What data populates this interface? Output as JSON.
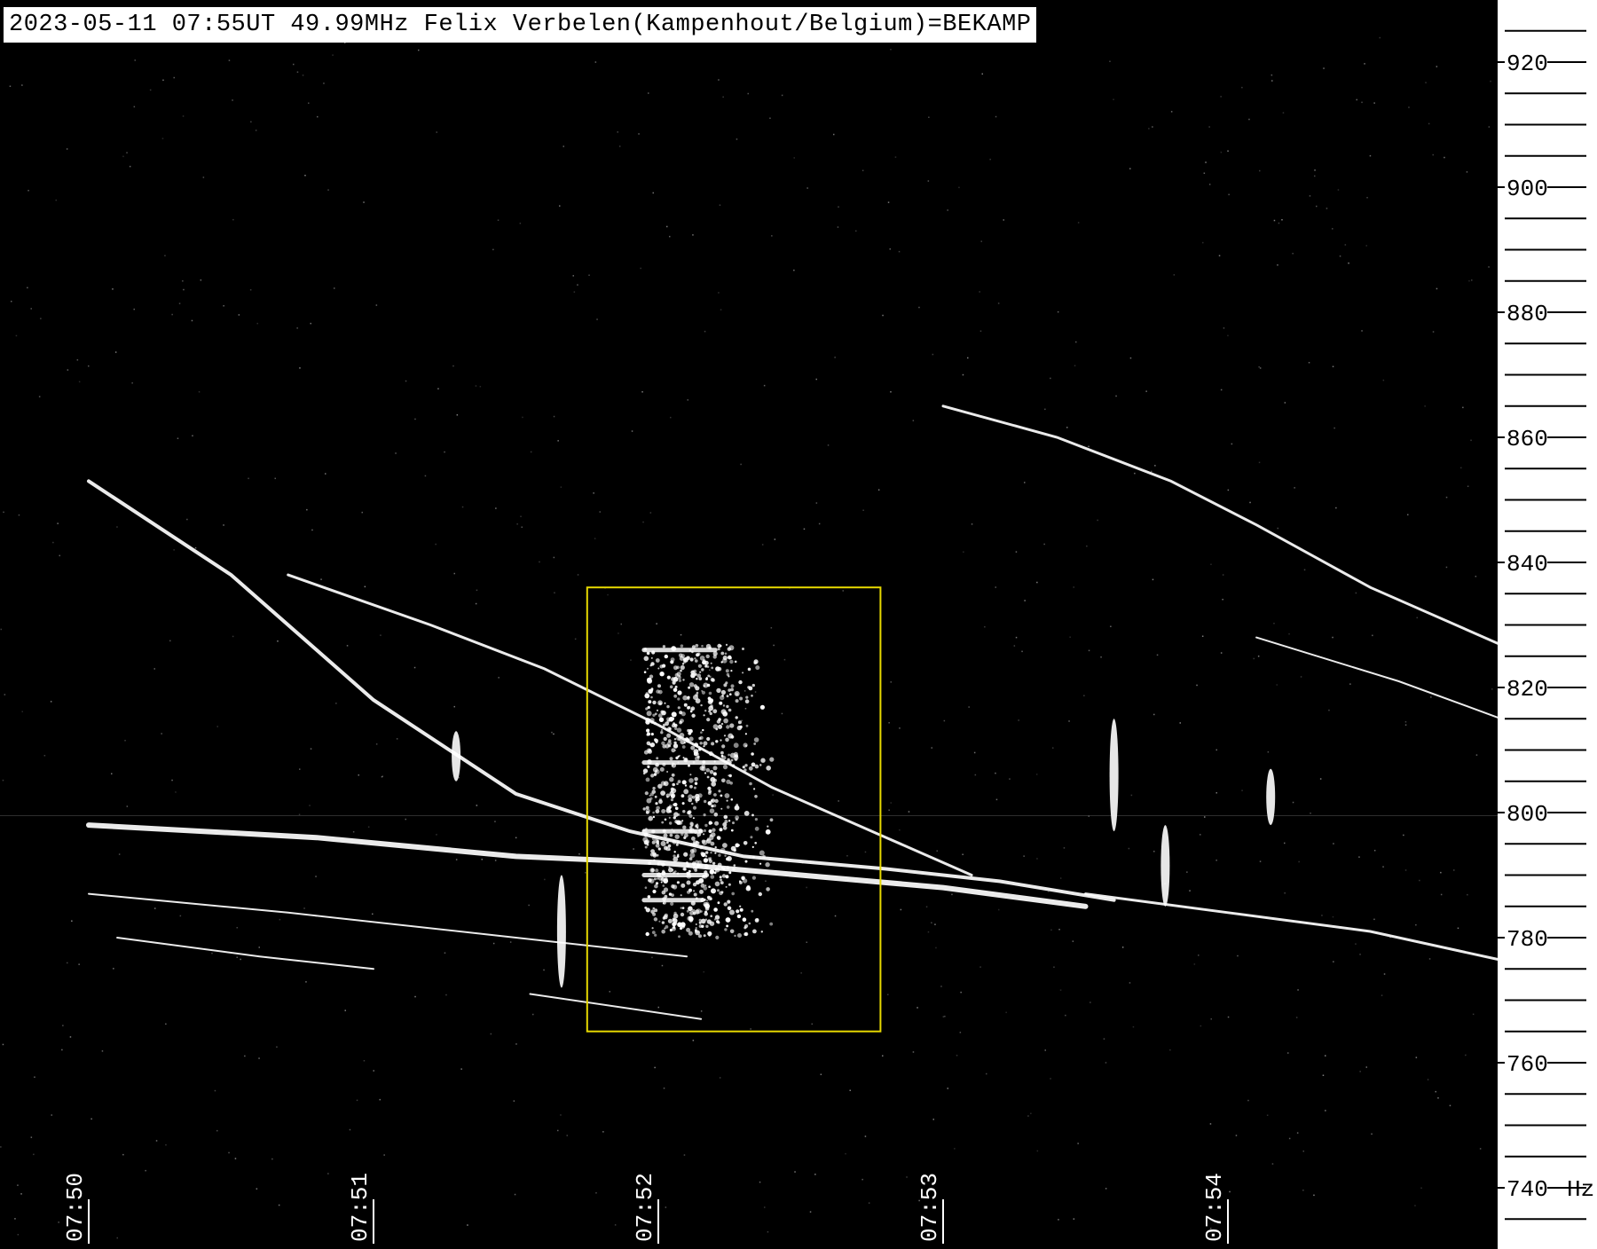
{
  "header": {
    "title": "2023-05-11 07:55UT 49.99MHz Felix Verbelen(Kampenhout/Belgium)=BEKAMP"
  },
  "chart_data": {
    "type": "spectrogram",
    "title": "2023-05-11 07:55UT 49.99MHz Felix Verbelen(Kampenhout/Belgium)=BEKAMP",
    "xlabel": "",
    "ylabel": "Hz",
    "x_ticks": [
      "07:50",
      "07:51",
      "07:52",
      "07:53",
      "07:54"
    ],
    "y_ticks": [
      920,
      900,
      880,
      860,
      840,
      820,
      800,
      780,
      760,
      740
    ],
    "y_unit": "Hz",
    "ylim": [
      730,
      930
    ],
    "xlim_minutes": [
      0,
      5.25
    ],
    "colors": {
      "background": "#000000",
      "signal": "#ffffff",
      "highlight_box": "#e6d800"
    },
    "highlight_box": {
      "x_range_minutes": [
        1.75,
        2.78
      ],
      "y_range_hz": [
        765,
        836
      ]
    },
    "traces": [
      {
        "points": [
          [
            0.0,
            853
          ],
          [
            0.5,
            838
          ],
          [
            1.0,
            818
          ],
          [
            1.5,
            803
          ],
          [
            1.9,
            797
          ],
          [
            2.3,
            793
          ],
          [
            2.8,
            791
          ],
          [
            3.2,
            789
          ],
          [
            3.6,
            786
          ]
        ],
        "width": 4
      },
      {
        "points": [
          [
            0.0,
            798
          ],
          [
            0.8,
            796
          ],
          [
            1.5,
            793
          ],
          [
            2.0,
            792
          ],
          [
            2.5,
            790
          ],
          [
            3.0,
            788
          ],
          [
            3.5,
            785
          ]
        ],
        "width": 6
      },
      {
        "points": [
          [
            0.7,
            838
          ],
          [
            1.2,
            830
          ],
          [
            1.6,
            823
          ],
          [
            2.0,
            814
          ],
          [
            2.4,
            804
          ],
          [
            2.8,
            796
          ],
          [
            3.1,
            790
          ]
        ],
        "width": 3
      },
      {
        "points": [
          [
            3.0,
            865
          ],
          [
            3.4,
            860
          ],
          [
            3.8,
            853
          ],
          [
            4.1,
            846
          ],
          [
            4.5,
            836
          ],
          [
            5.0,
            826
          ],
          [
            5.25,
            820
          ]
        ],
        "width": 3
      },
      {
        "points": [
          [
            0.0,
            787
          ],
          [
            0.7,
            784
          ],
          [
            1.5,
            780
          ],
          [
            2.1,
            777
          ]
        ],
        "width": 2
      },
      {
        "points": [
          [
            3.5,
            787
          ],
          [
            4.0,
            784
          ],
          [
            4.5,
            781
          ],
          [
            5.0,
            776
          ],
          [
            5.2,
            774
          ]
        ],
        "width": 3
      },
      {
        "points": [
          [
            0.1,
            780
          ],
          [
            0.6,
            777
          ],
          [
            1.0,
            775
          ]
        ],
        "width": 2
      },
      {
        "points": [
          [
            4.1,
            828
          ],
          [
            4.6,
            821
          ],
          [
            5.2,
            811
          ]
        ],
        "width": 2
      },
      {
        "points": [
          [
            1.55,
            771
          ],
          [
            2.15,
            767
          ]
        ],
        "width": 2
      }
    ],
    "pings": [
      {
        "x": 1.66,
        "y": [
          772,
          790
        ]
      },
      {
        "x": 3.6,
        "y": [
          797,
          815
        ]
      },
      {
        "x": 3.78,
        "y": [
          785,
          798
        ]
      },
      {
        "x": 4.15,
        "y": [
          798,
          807
        ]
      },
      {
        "x": 1.29,
        "y": [
          805,
          813
        ]
      }
    ],
    "burst": {
      "x_range_minutes": [
        1.95,
        2.42
      ],
      "y_range_hz": [
        780,
        827
      ]
    }
  }
}
